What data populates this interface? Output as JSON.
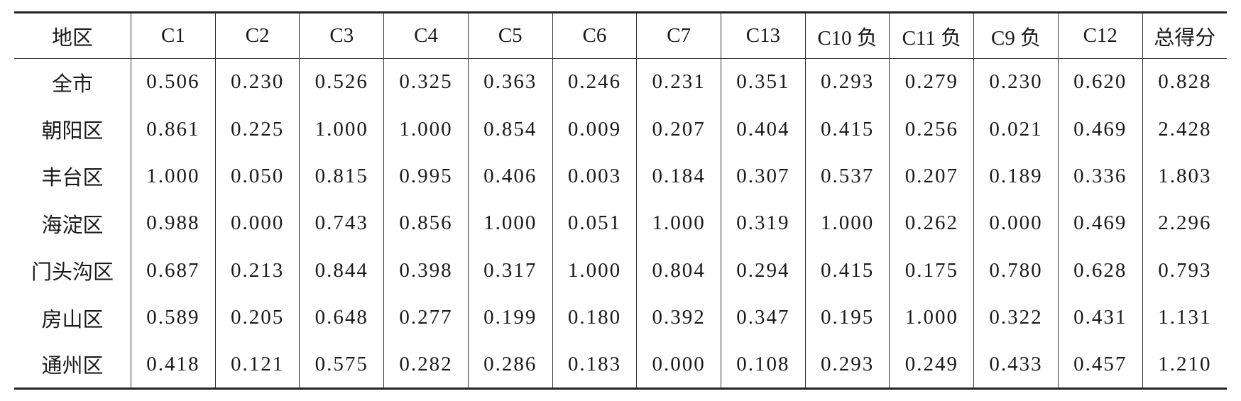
{
  "table": {
    "header": [
      "地区",
      "C1",
      "C2",
      "C3",
      "C4",
      "C5",
      "C6",
      "C7",
      "C13",
      "C10 负",
      "C11 负",
      "C9 负",
      "C12",
      "总得分"
    ],
    "rows": [
      [
        "全市",
        "0.506",
        "0.230",
        "0.526",
        "0.325",
        "0.363",
        "0.246",
        "0.231",
        "0.351",
        "0.293",
        "0.279",
        "0.230",
        "0.620",
        "0.828"
      ],
      [
        "朝阳区",
        "0.861",
        "0.225",
        "1.000",
        "1.000",
        "0.854",
        "0.009",
        "0.207",
        "0.404",
        "0.415",
        "0.256",
        "0.021",
        "0.469",
        "2.428"
      ],
      [
        "丰台区",
        "1.000",
        "0.050",
        "0.815",
        "0.995",
        "0.406",
        "0.003",
        "0.184",
        "0.307",
        "0.537",
        "0.207",
        "0.189",
        "0.336",
        "1.803"
      ],
      [
        "海淀区",
        "0.988",
        "0.000",
        "0.743",
        "0.856",
        "1.000",
        "0.051",
        "1.000",
        "0.319",
        "1.000",
        "0.262",
        "0.000",
        "0.469",
        "2.296"
      ],
      [
        "门头沟区",
        "0.687",
        "0.213",
        "0.844",
        "0.398",
        "0.317",
        "1.000",
        "0.804",
        "0.294",
        "0.415",
        "0.175",
        "0.780",
        "0.628",
        "0.793"
      ],
      [
        "房山区",
        "0.589",
        "0.205",
        "0.648",
        "0.277",
        "0.199",
        "0.180",
        "0.392",
        "0.347",
        "0.195",
        "1.000",
        "0.322",
        "0.431",
        "1.131"
      ],
      [
        "通州区",
        "0.418",
        "0.121",
        "0.575",
        "0.282",
        "0.286",
        "0.183",
        "0.000",
        "0.108",
        "0.293",
        "0.249",
        "0.433",
        "0.457",
        "1.210"
      ]
    ]
  }
}
